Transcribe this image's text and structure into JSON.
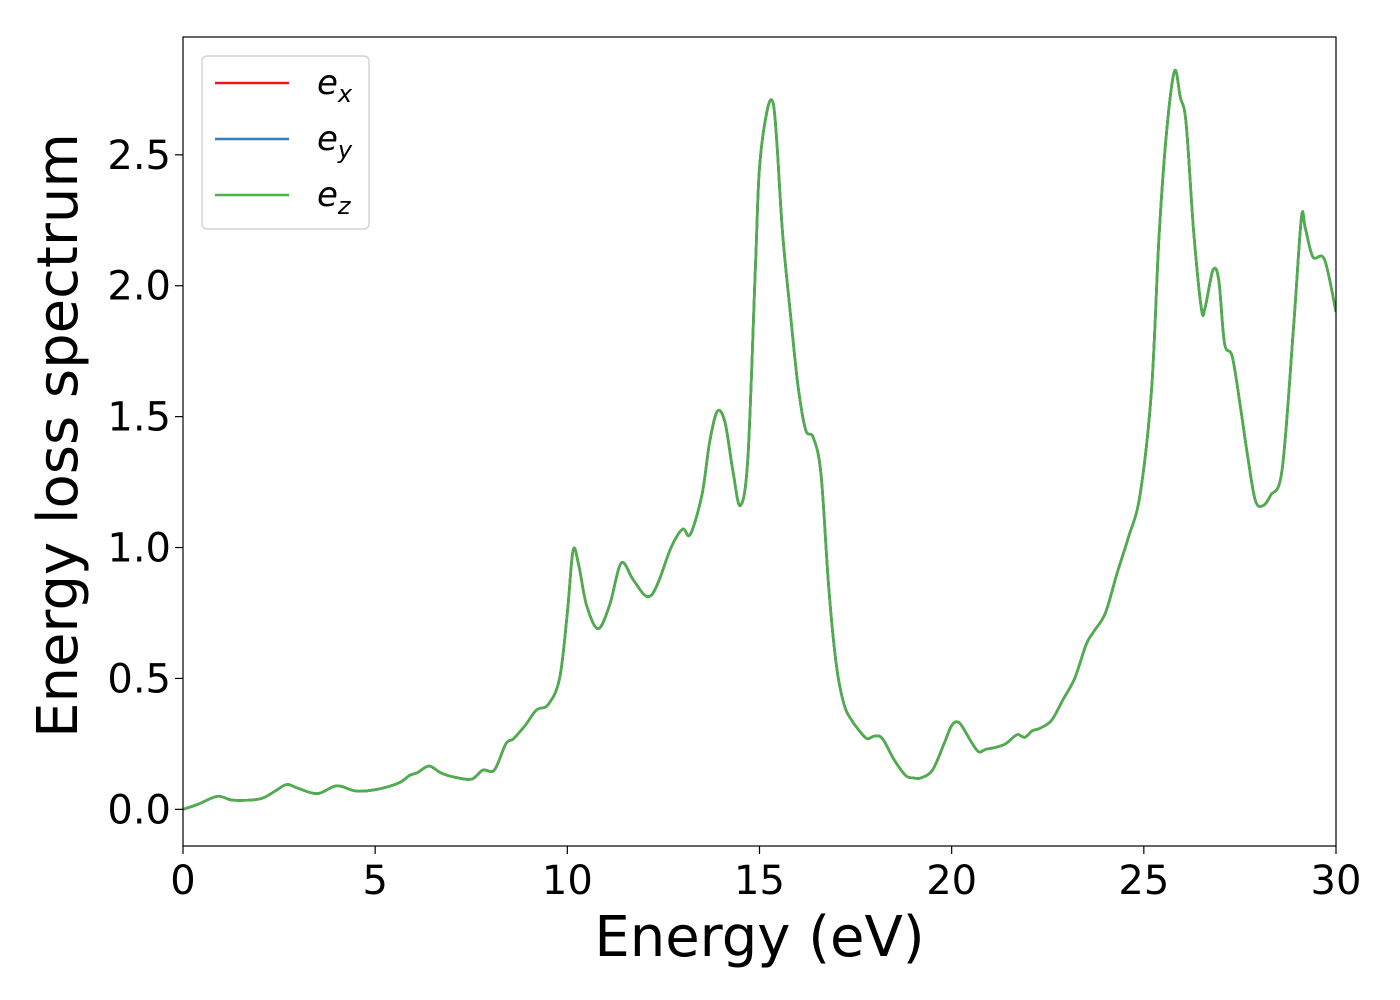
{
  "chart_data": {
    "type": "line",
    "xlabel": "Energy (eV)",
    "ylabel": "Energy loss spectrum",
    "xlim": [
      0,
      30
    ],
    "ylim": [
      -0.14,
      2.95
    ],
    "grid": false,
    "legend_position": "top-left",
    "x_ticks": [
      0,
      5,
      10,
      15,
      20,
      25,
      30
    ],
    "x_tick_labels": [
      "0",
      "5",
      "10",
      "15",
      "20",
      "25",
      "30"
    ],
    "y_ticks": [
      0.0,
      0.5,
      1.0,
      1.5,
      2.0,
      2.5
    ],
    "y_tick_labels": [
      "0.0",
      "0.5",
      "1.0",
      "1.5",
      "2.0",
      "2.5"
    ],
    "series": [
      {
        "name": "e",
        "subscript": "x",
        "color": "#e41a1c",
        "curve": "shared"
      },
      {
        "name": "e",
        "subscript": "y",
        "color": "#377eb8",
        "curve": "shared"
      },
      {
        "name": "e",
        "subscript": "z",
        "color": "#4daf4a",
        "curve": "shared"
      }
    ],
    "shared_curve": {
      "x": [
        0,
        0.4,
        0.9,
        1.3,
        2.0,
        2.4,
        2.7,
        3.0,
        3.5,
        4.0,
        4.5,
        5.0,
        5.6,
        5.9,
        6.1,
        6.4,
        6.7,
        7.0,
        7.5,
        7.8,
        8.1,
        8.4,
        8.6,
        8.9,
        9.2,
        9.5,
        9.8,
        10.0,
        10.15,
        10.3,
        10.5,
        10.8,
        11.1,
        11.4,
        11.7,
        12.0,
        12.2,
        12.4,
        12.7,
        13.0,
        13.2,
        13.5,
        13.7,
        13.9,
        14.1,
        14.3,
        14.5,
        14.7,
        14.9,
        15.0,
        15.2,
        15.35,
        15.45,
        15.6,
        15.8,
        16.0,
        16.2,
        16.4,
        16.6,
        16.8,
        17.0,
        17.2,
        17.4,
        17.6,
        17.8,
        18.0,
        18.2,
        18.5,
        18.8,
        19.0,
        19.2,
        19.5,
        19.8,
        20.0,
        20.2,
        20.5,
        20.7,
        20.9,
        21.1,
        21.4,
        21.7,
        21.9,
        22.1,
        22.3,
        22.6,
        22.9,
        23.2,
        23.5,
        23.7,
        24.0,
        24.3,
        24.6,
        24.9,
        25.2,
        25.4,
        25.6,
        25.8,
        25.95,
        26.1,
        26.3,
        26.5,
        26.6,
        26.8,
        26.95,
        27.1,
        27.3,
        27.5,
        27.7,
        27.9,
        28.1,
        28.3,
        28.6,
        28.9,
        29.1,
        29.2,
        29.4,
        29.7,
        30.0
      ],
      "y": [
        0.0,
        0.02,
        0.05,
        0.035,
        0.04,
        0.07,
        0.095,
        0.08,
        0.06,
        0.09,
        0.07,
        0.075,
        0.1,
        0.13,
        0.14,
        0.165,
        0.14,
        0.125,
        0.115,
        0.15,
        0.15,
        0.25,
        0.27,
        0.32,
        0.38,
        0.4,
        0.5,
        0.75,
        0.99,
        0.93,
        0.78,
        0.69,
        0.78,
        0.94,
        0.88,
        0.82,
        0.82,
        0.88,
        1.0,
        1.07,
        1.05,
        1.2,
        1.4,
        1.52,
        1.48,
        1.3,
        1.16,
        1.35,
        2.1,
        2.45,
        2.67,
        2.7,
        2.55,
        2.2,
        1.9,
        1.62,
        1.45,
        1.42,
        1.28,
        0.85,
        0.55,
        0.4,
        0.34,
        0.3,
        0.27,
        0.28,
        0.27,
        0.19,
        0.13,
        0.12,
        0.12,
        0.15,
        0.25,
        0.32,
        0.33,
        0.26,
        0.22,
        0.23,
        0.235,
        0.25,
        0.285,
        0.275,
        0.3,
        0.31,
        0.34,
        0.42,
        0.5,
        0.63,
        0.68,
        0.75,
        0.9,
        1.04,
        1.2,
        1.6,
        2.2,
        2.6,
        2.82,
        2.72,
        2.62,
        2.2,
        1.91,
        1.92,
        2.06,
        2.02,
        1.78,
        1.73,
        1.55,
        1.35,
        1.18,
        1.16,
        1.2,
        1.3,
        1.85,
        2.26,
        2.22,
        2.11,
        2.1,
        1.9
      ]
    }
  }
}
